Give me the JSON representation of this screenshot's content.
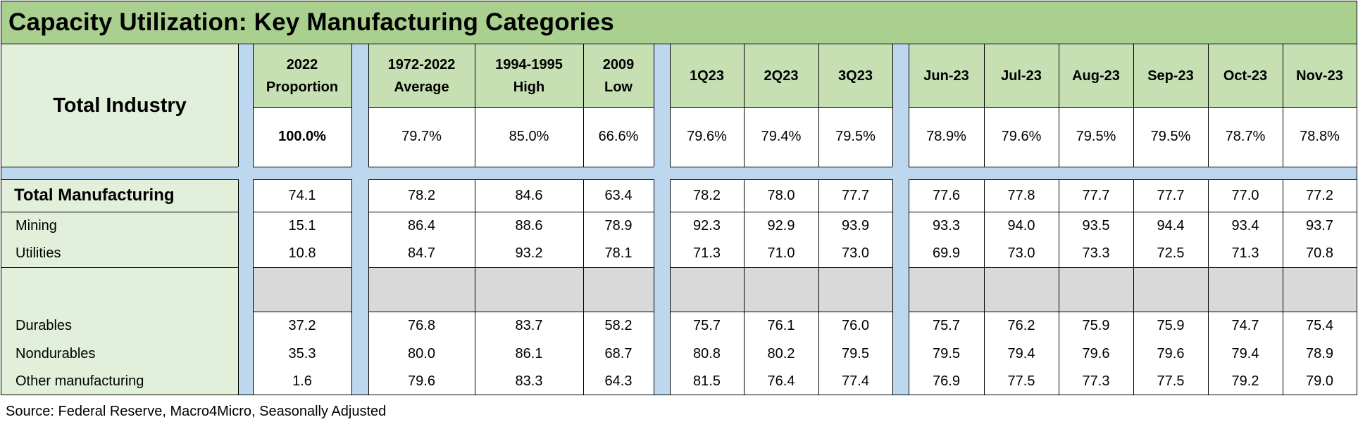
{
  "title": "Capacity Utilization: Key Manufacturing Categories",
  "source": "Source: Federal Reserve, Macro4Micro, Seasonally Adjusted",
  "chart_data": {
    "type": "table",
    "title": "Capacity Utilization: Key Manufacturing Categories",
    "columns": [
      "2022 Proportion",
      "1972-2022 Average",
      "1994-1995 High",
      "2009 Low",
      "1Q23",
      "2Q23",
      "3Q23",
      "Jun-23",
      "Jul-23",
      "Aug-23",
      "Sep-23",
      "Oct-23",
      "Nov-23"
    ],
    "column_labels": [
      [
        "2022",
        "Proportion"
      ],
      [
        "1972-2022",
        "Average"
      ],
      [
        "1994-1995",
        "High"
      ],
      [
        "2009",
        "Low"
      ],
      [
        "1Q23"
      ],
      [
        "2Q23"
      ],
      [
        "3Q23"
      ],
      [
        "Jun-23"
      ],
      [
        "Jul-23"
      ],
      [
        "Aug-23"
      ],
      [
        "Sep-23"
      ],
      [
        "Oct-23"
      ],
      [
        "Nov-23"
      ]
    ],
    "total_industry": {
      "label": "Total Industry",
      "values": [
        "100.0%",
        "79.7%",
        "85.0%",
        "66.6%",
        "79.6%",
        "79.4%",
        "79.5%",
        "78.9%",
        "79.6%",
        "79.5%",
        "79.5%",
        "78.7%",
        "78.8%"
      ]
    },
    "rows": [
      {
        "label": "Total Manufacturing",
        "values": [
          "74.1",
          "78.2",
          "84.6",
          "63.4",
          "78.2",
          "78.0",
          "77.7",
          "77.6",
          "77.8",
          "77.7",
          "77.7",
          "77.0",
          "77.2"
        ]
      },
      {
        "label": "Mining",
        "values": [
          "15.1",
          "86.4",
          "88.6",
          "78.9",
          "92.3",
          "92.9",
          "93.9",
          "93.3",
          "94.0",
          "93.5",
          "94.4",
          "93.4",
          "93.7"
        ]
      },
      {
        "label": "Utilities",
        "values": [
          "10.8",
          "84.7",
          "93.2",
          "78.1",
          "71.3",
          "71.0",
          "73.0",
          "69.9",
          "73.0",
          "73.3",
          "72.5",
          "71.3",
          "70.8"
        ]
      },
      {
        "label": "Durables",
        "values": [
          "37.2",
          "76.8",
          "83.7",
          "58.2",
          "75.7",
          "76.1",
          "76.0",
          "75.7",
          "76.2",
          "75.9",
          "75.9",
          "74.7",
          "75.4"
        ]
      },
      {
        "label": "Nondurables",
        "values": [
          "35.3",
          "80.0",
          "86.1",
          "68.7",
          "80.8",
          "80.2",
          "79.5",
          "79.5",
          "79.4",
          "79.6",
          "79.6",
          "79.4",
          "78.9"
        ]
      },
      {
        "label": "Other manufacturing",
        "values": [
          "1.6",
          "79.6",
          "83.3",
          "64.3",
          "81.5",
          "76.4",
          "77.4",
          "76.9",
          "77.5",
          "77.3",
          "77.5",
          "79.2",
          "79.0"
        ]
      }
    ]
  },
  "colors": {
    "title_bg": "#a9d08e",
    "header_bg": "#c6e0b4",
    "label_bg": "#e2efda",
    "separator_bg": "#bdd7ee",
    "spacer_bg": "#d9d9d9"
  }
}
